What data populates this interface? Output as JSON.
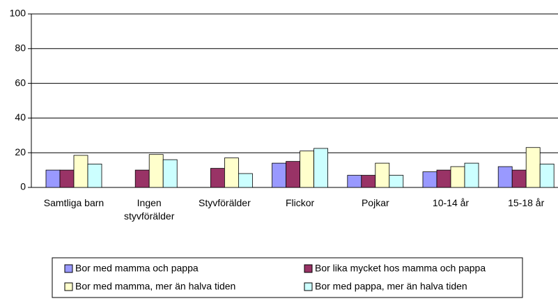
{
  "chart_data": {
    "type": "bar",
    "categories": [
      "Samtliga barn",
      "Ingen styvförälder",
      "Styvförälder",
      "Flickor",
      "Pojkar",
      "10-14 år",
      "15-18 år"
    ],
    "series": [
      {
        "name": "Bor med mamma och pappa",
        "color": "#9999ff",
        "values": [
          10,
          null,
          null,
          14,
          7,
          9,
          12
        ]
      },
      {
        "name": "Bor lika mycket hos mamma och pappa",
        "color": "#993366",
        "values": [
          10,
          10,
          11,
          15,
          7,
          10,
          10
        ]
      },
      {
        "name": "Bor med mamma, mer än halva tiden",
        "color": "#ffffcc",
        "values": [
          18.5,
          19,
          17,
          21,
          14,
          12,
          23
        ]
      },
      {
        "name": "Bor med pappa, mer än halva tiden",
        "color": "#ccffff",
        "values": [
          13.5,
          16,
          8,
          22.5,
          7,
          14,
          13.5
        ]
      }
    ],
    "ylim": [
      0,
      100
    ],
    "yticks": [
      0,
      20,
      40,
      60,
      80,
      100
    ],
    "grid": true,
    "legend": "bottom"
  }
}
